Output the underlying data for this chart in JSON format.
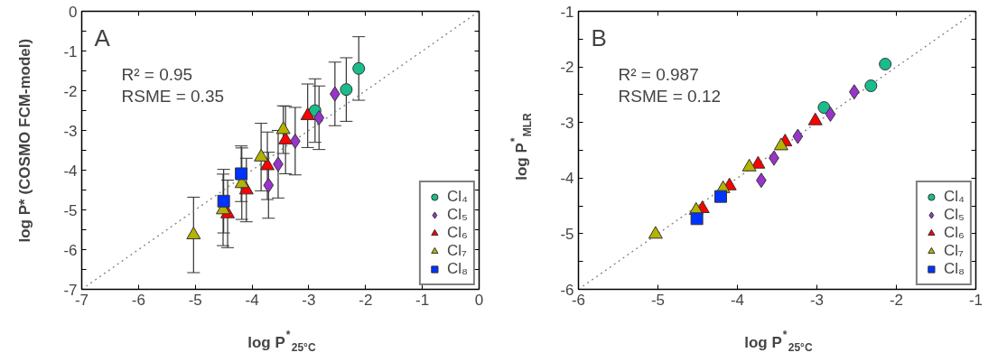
{
  "chart_data": [
    {
      "type": "scatter",
      "xlabel": "log P$^{*}$$_{25°C}$",
      "ylabel": "log P* (COSMO FCM-model)",
      "xlim": [
        -7,
        0
      ],
      "ylim": [
        -7,
        0
      ],
      "xticks": [
        -7,
        -6,
        -5,
        -4,
        -3,
        -2,
        -1,
        0
      ],
      "yticks": [
        -7,
        {
          "value": -6.5,
          "label": null
        },
        -6,
        {
          "value": -5.5,
          "label": null
        },
        -5,
        {
          "value": -4.5,
          "label": null
        },
        -4,
        {
          "value": -3.5,
          "label": null
        },
        -3,
        {
          "value": -2.5,
          "label": null
        },
        -2,
        {
          "value": -1.5,
          "label": null
        },
        -1,
        {
          "value": -0.5,
          "label": null
        },
        0
      ],
      "legend": "bottom right",
      "grid": false,
      "annotations": [
        "A",
        "R² = 0.95",
        "RSME = 0.35"
      ],
      "series": [
        {
          "type": "line",
          "x": [
            -7,
            0
          ],
          "values": [
            -7,
            0
          ],
          "color": "#808080",
          "line_style": "dotted"
        },
        {
          "name": "Cl₄",
          "color": "#1abc8c",
          "marker": "circle",
          "x": [
            -2.12,
            -2.34,
            -2.89
          ],
          "values": [
            -1.44,
            -1.97,
            -2.5
          ],
          "errors": [
            0.8,
            0.8,
            0.8
          ]
        },
        {
          "name": "Cl₅",
          "color": "#9933cc",
          "marker": "diamond",
          "x": [
            -2.54,
            -2.82,
            -3.24,
            -3.54,
            -3.71
          ],
          "values": [
            -2.08,
            -2.68,
            -3.27,
            -3.85,
            -4.38
          ],
          "errors": [
            0.8,
            0.8,
            0.85,
            0.85,
            0.83
          ]
        },
        {
          "name": "Cl₆",
          "color": "#ff0000",
          "marker": "triangle",
          "x": [
            -3.02,
            -3.41,
            -3.73,
            -4.1,
            -4.43
          ],
          "values": [
            -2.63,
            -3.24,
            -3.89,
            -4.5,
            -5.1
          ],
          "errors": [
            0.8,
            0.85,
            0.85,
            0.8,
            0.85
          ]
        },
        {
          "name": "Cl₇",
          "color": "#b3b300",
          "marker": "triangle",
          "x": [
            -5.03,
            -4.51,
            -4.18,
            -3.84,
            -3.45
          ],
          "values": [
            -5.63,
            -5.0,
            -4.34,
            -3.67,
            -2.98
          ],
          "errors": [
            0.95,
            0.9,
            0.9,
            0.85,
            0.6
          ]
        },
        {
          "name": "Cl₈",
          "color": "#0033ff",
          "marker": "square",
          "x": [
            -4.5,
            -4.19
          ],
          "values": [
            -4.78,
            -4.09
          ],
          "errors": [
            0.8,
            0.7
          ]
        }
      ]
    },
    {
      "type": "scatter",
      "xlabel": "log P$^{*}$$_{25°C}$",
      "ylabel": "log P$^{*}$$_{MLR}$",
      "xlim": [
        -6,
        -1
      ],
      "ylim": [
        -6,
        -1
      ],
      "xticks": [
        -6,
        -5,
        -4,
        -3,
        -2,
        -1
      ],
      "yticks": [
        -6,
        {
          "value": -5.5,
          "label": null
        },
        -5,
        {
          "value": -4.5,
          "label": null
        },
        -4,
        {
          "value": -3.5,
          "label": null
        },
        -3,
        {
          "value": -2.5,
          "label": null
        },
        -2,
        {
          "value": -1.5,
          "label": null
        },
        -1
      ],
      "legend": "bottom right",
      "grid": false,
      "annotations": [
        "B",
        "R² = 0.987",
        "RSME = 0.12"
      ],
      "series": [
        {
          "type": "line",
          "x": [
            -6,
            -1
          ],
          "values": [
            -6,
            -1
          ],
          "color": "#808080",
          "line_style": "dotted"
        },
        {
          "name": "Cl₄",
          "color": "#1abc8c",
          "marker": "circle",
          "x": [
            -2.14,
            -2.32,
            -2.91
          ],
          "values": [
            -1.95,
            -2.34,
            -2.73
          ]
        },
        {
          "name": "Cl₅",
          "color": "#9933cc",
          "marker": "diamond",
          "x": [
            -2.53,
            -2.83,
            -3.24,
            -3.54,
            -3.7
          ],
          "values": [
            -2.45,
            -2.85,
            -3.25,
            -3.64,
            -4.04
          ]
        },
        {
          "name": "Cl₆",
          "color": "#ff0000",
          "marker": "triangle",
          "x": [
            -3.02,
            -3.4,
            -3.74,
            -4.1,
            -4.44
          ],
          "values": [
            -2.97,
            -3.35,
            -3.75,
            -4.14,
            -4.55
          ]
        },
        {
          "name": "Cl₇",
          "color": "#b3b300",
          "marker": "triangle",
          "x": [
            -5.03,
            -4.52,
            -4.18,
            -3.85,
            -3.45
          ],
          "values": [
            -5.01,
            -4.58,
            -4.19,
            -3.8,
            -3.42
          ]
        },
        {
          "name": "Cl₈",
          "color": "#0033ff",
          "marker": "square",
          "x": [
            -4.51,
            -4.21
          ],
          "values": [
            -4.73,
            -4.33
          ]
        }
      ]
    }
  ]
}
